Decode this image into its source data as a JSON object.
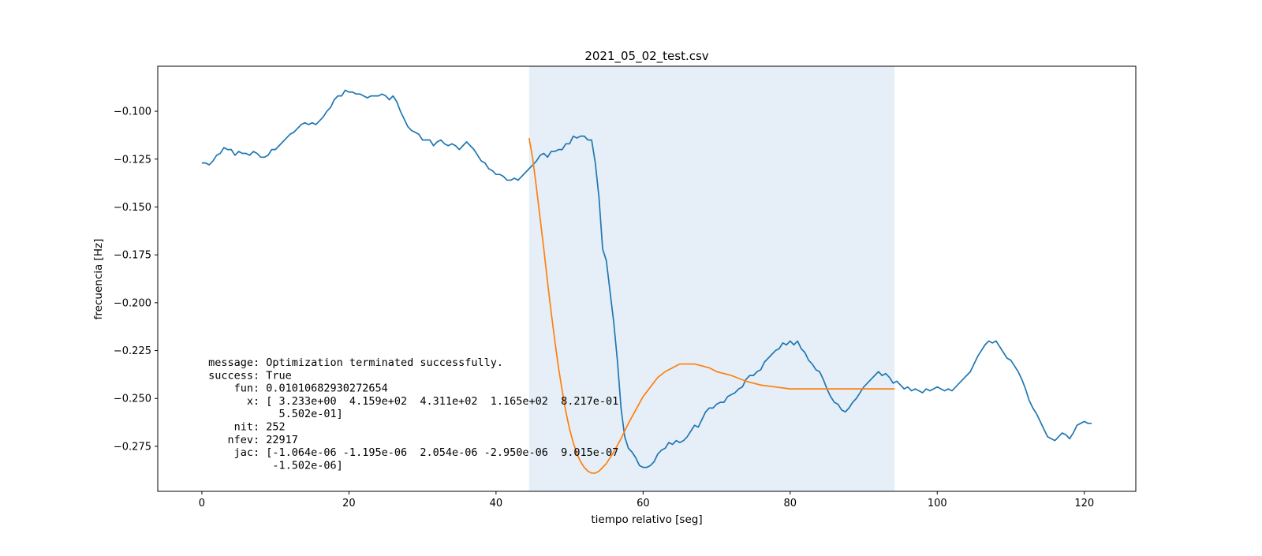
{
  "chart_data": {
    "type": "line",
    "title": "2021_05_02_test.csv",
    "xlabel": "tiempo relativo [seg]",
    "ylabel": "frecuencia [Hz]",
    "xlim": [
      -6,
      127
    ],
    "ylim": [
      -0.2985,
      -0.0765
    ],
    "x_ticks": [
      0,
      20,
      40,
      60,
      80,
      100,
      120
    ],
    "x_tick_labels": [
      "0",
      "20",
      "40",
      "60",
      "80",
      "100",
      "120"
    ],
    "y_ticks": [
      -0.1,
      -0.125,
      -0.15,
      -0.175,
      -0.2,
      -0.225,
      -0.25,
      -0.275
    ],
    "y_tick_labels": [
      "−0.100",
      "−0.125",
      "−0.150",
      "−0.175",
      "−0.200",
      "−0.225",
      "−0.250",
      "−0.275"
    ],
    "grid": false,
    "shaded_region": {
      "x": [
        44.5,
        94.2
      ],
      "color": "#e6eff7"
    },
    "series": [
      {
        "color": "#1f77b4",
        "points": [
          [
            0,
            -0.127
          ],
          [
            0.5,
            -0.127
          ],
          [
            1,
            -0.128
          ],
          [
            1.5,
            -0.126
          ],
          [
            2,
            -0.123
          ],
          [
            2.5,
            -0.122
          ],
          [
            3,
            -0.119
          ],
          [
            3.5,
            -0.12
          ],
          [
            4,
            -0.12
          ],
          [
            4.5,
            -0.123
          ],
          [
            5,
            -0.121
          ],
          [
            5.5,
            -0.122
          ],
          [
            6,
            -0.122
          ],
          [
            6.5,
            -0.123
          ],
          [
            7,
            -0.121
          ],
          [
            7.5,
            -0.122
          ],
          [
            8,
            -0.124
          ],
          [
            8.5,
            -0.124
          ],
          [
            9,
            -0.123
          ],
          [
            9.5,
            -0.12
          ],
          [
            10,
            -0.12
          ],
          [
            10.5,
            -0.118
          ],
          [
            11,
            -0.116
          ],
          [
            11.5,
            -0.114
          ],
          [
            12,
            -0.112
          ],
          [
            12.5,
            -0.111
          ],
          [
            13,
            -0.109
          ],
          [
            13.5,
            -0.107
          ],
          [
            14,
            -0.106
          ],
          [
            14.5,
            -0.107
          ],
          [
            15,
            -0.106
          ],
          [
            15.5,
            -0.107
          ],
          [
            16,
            -0.105
          ],
          [
            16.5,
            -0.103
          ],
          [
            17,
            -0.1
          ],
          [
            17.5,
            -0.098
          ],
          [
            18,
            -0.094
          ],
          [
            18.5,
            -0.092
          ],
          [
            19,
            -0.092
          ],
          [
            19.5,
            -0.089
          ],
          [
            20,
            -0.09
          ],
          [
            20.5,
            -0.09
          ],
          [
            21,
            -0.091
          ],
          [
            21.5,
            -0.091
          ],
          [
            22,
            -0.092
          ],
          [
            22.5,
            -0.093
          ],
          [
            23,
            -0.092
          ],
          [
            23.5,
            -0.092
          ],
          [
            24,
            -0.092
          ],
          [
            24.5,
            -0.091
          ],
          [
            25,
            -0.092
          ],
          [
            25.5,
            -0.094
          ],
          [
            26,
            -0.092
          ],
          [
            26.5,
            -0.095
          ],
          [
            27,
            -0.1
          ],
          [
            27.5,
            -0.104
          ],
          [
            28,
            -0.108
          ],
          [
            28.5,
            -0.11
          ],
          [
            29,
            -0.111
          ],
          [
            29.5,
            -0.112
          ],
          [
            30,
            -0.115
          ],
          [
            30.5,
            -0.115
          ],
          [
            31,
            -0.115
          ],
          [
            31.5,
            -0.118
          ],
          [
            32,
            -0.116
          ],
          [
            32.5,
            -0.115
          ],
          [
            33,
            -0.117
          ],
          [
            33.5,
            -0.118
          ],
          [
            34,
            -0.117
          ],
          [
            34.5,
            -0.118
          ],
          [
            35,
            -0.12
          ],
          [
            35.5,
            -0.118
          ],
          [
            36,
            -0.116
          ],
          [
            36.5,
            -0.118
          ],
          [
            37,
            -0.12
          ],
          [
            37.5,
            -0.123
          ],
          [
            38,
            -0.126
          ],
          [
            38.5,
            -0.127
          ],
          [
            39,
            -0.13
          ],
          [
            39.5,
            -0.131
          ],
          [
            40,
            -0.133
          ],
          [
            40.5,
            -0.133
          ],
          [
            41,
            -0.134
          ],
          [
            41.5,
            -0.136
          ],
          [
            42,
            -0.136
          ],
          [
            42.5,
            -0.135
          ],
          [
            43,
            -0.136
          ],
          [
            43.5,
            -0.134
          ],
          [
            44,
            -0.132
          ],
          [
            44.5,
            -0.13
          ],
          [
            45,
            -0.128
          ],
          [
            45.5,
            -0.126
          ],
          [
            46,
            -0.123
          ],
          [
            46.5,
            -0.122
          ],
          [
            47,
            -0.124
          ],
          [
            47.5,
            -0.121
          ],
          [
            48,
            -0.121
          ],
          [
            48.5,
            -0.12
          ],
          [
            49,
            -0.12
          ],
          [
            49.5,
            -0.117
          ],
          [
            50,
            -0.117
          ],
          [
            50.5,
            -0.113
          ],
          [
            51,
            -0.114
          ],
          [
            51.5,
            -0.113
          ],
          [
            52,
            -0.113
          ],
          [
            52.5,
            -0.115
          ],
          [
            53,
            -0.115
          ],
          [
            53.5,
            -0.127
          ],
          [
            54,
            -0.145
          ],
          [
            54.5,
            -0.172
          ],
          [
            55,
            -0.178
          ],
          [
            55.5,
            -0.194
          ],
          [
            56,
            -0.21
          ],
          [
            56.5,
            -0.23
          ],
          [
            57,
            -0.255
          ],
          [
            57.5,
            -0.27
          ],
          [
            58,
            -0.276
          ],
          [
            58.5,
            -0.278
          ],
          [
            59,
            -0.281
          ],
          [
            59.5,
            -0.285
          ],
          [
            60,
            -0.286
          ],
          [
            60.5,
            -0.286
          ],
          [
            61,
            -0.285
          ],
          [
            61.5,
            -0.283
          ],
          [
            62,
            -0.279
          ],
          [
            62.5,
            -0.277
          ],
          [
            63,
            -0.276
          ],
          [
            63.5,
            -0.273
          ],
          [
            64,
            -0.274
          ],
          [
            64.5,
            -0.272
          ],
          [
            65,
            -0.273
          ],
          [
            65.5,
            -0.272
          ],
          [
            66,
            -0.27
          ],
          [
            66.5,
            -0.267
          ],
          [
            67,
            -0.264
          ],
          [
            67.5,
            -0.265
          ],
          [
            68,
            -0.261
          ],
          [
            68.5,
            -0.257
          ],
          [
            69,
            -0.255
          ],
          [
            69.5,
            -0.255
          ],
          [
            70,
            -0.253
          ],
          [
            70.5,
            -0.252
          ],
          [
            71,
            -0.252
          ],
          [
            71.5,
            -0.249
          ],
          [
            72,
            -0.248
          ],
          [
            72.5,
            -0.247
          ],
          [
            73,
            -0.245
          ],
          [
            73.5,
            -0.244
          ],
          [
            74,
            -0.24
          ],
          [
            74.5,
            -0.238
          ],
          [
            75,
            -0.238
          ],
          [
            75.5,
            -0.236
          ],
          [
            76,
            -0.235
          ],
          [
            76.5,
            -0.231
          ],
          [
            77,
            -0.229
          ],
          [
            77.5,
            -0.227
          ],
          [
            78,
            -0.225
          ],
          [
            78.5,
            -0.224
          ],
          [
            79,
            -0.221
          ],
          [
            79.5,
            -0.222
          ],
          [
            80,
            -0.22
          ],
          [
            80.5,
            -0.222
          ],
          [
            81,
            -0.22
          ],
          [
            81.5,
            -0.224
          ],
          [
            82,
            -0.226
          ],
          [
            82.5,
            -0.23
          ],
          [
            83,
            -0.232
          ],
          [
            83.5,
            -0.235
          ],
          [
            84,
            -0.236
          ],
          [
            84.5,
            -0.24
          ],
          [
            85,
            -0.245
          ],
          [
            85.5,
            -0.249
          ],
          [
            86,
            -0.252
          ],
          [
            86.5,
            -0.253
          ],
          [
            87,
            -0.256
          ],
          [
            87.5,
            -0.257
          ],
          [
            88,
            -0.255
          ],
          [
            88.5,
            -0.252
          ],
          [
            89,
            -0.25
          ],
          [
            89.5,
            -0.247
          ],
          [
            90,
            -0.244
          ],
          [
            90.5,
            -0.242
          ],
          [
            91,
            -0.24
          ],
          [
            91.5,
            -0.238
          ],
          [
            92,
            -0.236
          ],
          [
            92.5,
            -0.238
          ],
          [
            93,
            -0.237
          ],
          [
            93.5,
            -0.239
          ],
          [
            94,
            -0.242
          ],
          [
            94.5,
            -0.241
          ],
          [
            95,
            -0.243
          ],
          [
            95.5,
            -0.245
          ],
          [
            96,
            -0.244
          ],
          [
            96.5,
            -0.246
          ],
          [
            97,
            -0.245
          ],
          [
            97.5,
            -0.246
          ],
          [
            98,
            -0.247
          ],
          [
            98.5,
            -0.245
          ],
          [
            99,
            -0.246
          ],
          [
            99.5,
            -0.245
          ],
          [
            100,
            -0.244
          ],
          [
            100.5,
            -0.245
          ],
          [
            101,
            -0.246
          ],
          [
            101.5,
            -0.245
          ],
          [
            102,
            -0.246
          ],
          [
            102.5,
            -0.244
          ],
          [
            103,
            -0.242
          ],
          [
            103.5,
            -0.24
          ],
          [
            104,
            -0.238
          ],
          [
            104.5,
            -0.236
          ],
          [
            105,
            -0.232
          ],
          [
            105.5,
            -0.228
          ],
          [
            106,
            -0.225
          ],
          [
            106.5,
            -0.222
          ],
          [
            107,
            -0.22
          ],
          [
            107.5,
            -0.221
          ],
          [
            108,
            -0.22
          ],
          [
            108.5,
            -0.223
          ],
          [
            109,
            -0.226
          ],
          [
            109.5,
            -0.229
          ],
          [
            110,
            -0.23
          ],
          [
            110.5,
            -0.233
          ],
          [
            111,
            -0.236
          ],
          [
            111.5,
            -0.24
          ],
          [
            112,
            -0.245
          ],
          [
            112.5,
            -0.251
          ],
          [
            113,
            -0.255
          ],
          [
            113.5,
            -0.258
          ],
          [
            114,
            -0.262
          ],
          [
            114.5,
            -0.266
          ],
          [
            115,
            -0.27
          ],
          [
            115.5,
            -0.271
          ],
          [
            116,
            -0.272
          ],
          [
            116.5,
            -0.27
          ],
          [
            117,
            -0.268
          ],
          [
            117.5,
            -0.269
          ],
          [
            118,
            -0.271
          ],
          [
            118.5,
            -0.268
          ],
          [
            119,
            -0.264
          ],
          [
            119.5,
            -0.263
          ],
          [
            120,
            -0.262
          ],
          [
            120.5,
            -0.263
          ],
          [
            121,
            -0.263
          ]
        ]
      },
      {
        "color": "#ff7f0e",
        "points": [
          [
            44.5,
            -0.114
          ],
          [
            45,
            -0.125
          ],
          [
            45.5,
            -0.14
          ],
          [
            46,
            -0.156
          ],
          [
            46.5,
            -0.172
          ],
          [
            47,
            -0.189
          ],
          [
            47.5,
            -0.205
          ],
          [
            48,
            -0.22
          ],
          [
            48.5,
            -0.234
          ],
          [
            49,
            -0.246
          ],
          [
            49.5,
            -0.257
          ],
          [
            50,
            -0.266
          ],
          [
            50.5,
            -0.273
          ],
          [
            51,
            -0.279
          ],
          [
            51.5,
            -0.283
          ],
          [
            52,
            -0.286
          ],
          [
            52.5,
            -0.288
          ],
          [
            53,
            -0.289
          ],
          [
            53.5,
            -0.289
          ],
          [
            54,
            -0.288
          ],
          [
            54.5,
            -0.286
          ],
          [
            55,
            -0.284
          ],
          [
            56,
            -0.278
          ],
          [
            57,
            -0.271
          ],
          [
            58,
            -0.263
          ],
          [
            59,
            -0.256
          ],
          [
            60,
            -0.249
          ],
          [
            61,
            -0.244
          ],
          [
            62,
            -0.239
          ],
          [
            63,
            -0.236
          ],
          [
            64,
            -0.234
          ],
          [
            65,
            -0.232
          ],
          [
            66,
            -0.232
          ],
          [
            67,
            -0.232
          ],
          [
            68,
            -0.233
          ],
          [
            69,
            -0.234
          ],
          [
            70,
            -0.236
          ],
          [
            72,
            -0.238
          ],
          [
            74,
            -0.241
          ],
          [
            76,
            -0.243
          ],
          [
            78,
            -0.244
          ],
          [
            80,
            -0.245
          ],
          [
            84,
            -0.245
          ],
          [
            88,
            -0.245
          ],
          [
            94.2,
            -0.245
          ]
        ]
      }
    ]
  },
  "annotation": {
    "lines": [
      " message: Optimization terminated successfully.",
      " success: True",
      "     fun: 0.01010682930272654",
      "       x: [ 3.233e+00  4.159e+02  4.311e+02  1.165e+02  8.217e-01",
      "            5.502e-01]",
      "     nit: 252",
      "    nfev: 22917",
      "     jac: [-1.064e-06 -1.195e-06  2.054e-06 -2.950e-06  9.015e-07",
      "           -1.502e-06]"
    ]
  }
}
